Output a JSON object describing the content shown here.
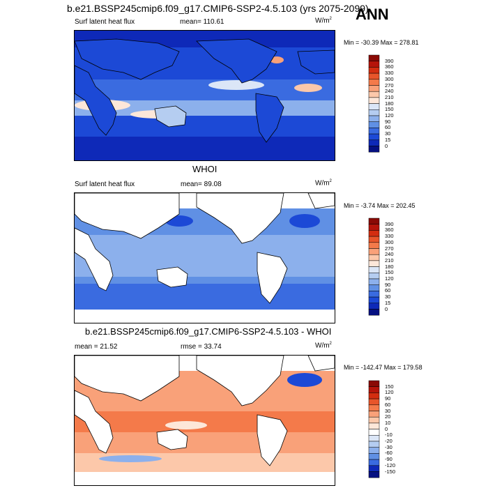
{
  "page_title": "b.e21.BSSP245cmip6.f09_g17.CMIP6-SSP2-4.5.103 (yrs 2075-2099)",
  "season": "ANN",
  "chart_data": [
    {
      "type": "heatmap",
      "title": "b.e21.BSSP245cmip6.f09_g17.CMIP6-SSP2-4.5.103 (yrs 2075-2099)",
      "variable": "Surf latent heat flux",
      "stat_label": "mean=",
      "stat_value": "110.61",
      "units": "W/m",
      "units_sup": "2",
      "min_max": "Min = -30.39 Max = 278.81",
      "colorbar_levels": [
        "390",
        "360",
        "330",
        "300",
        "270",
        "240",
        "210",
        "180",
        "150",
        "120",
        "90",
        "60",
        "30",
        "15",
        "0"
      ],
      "colorbar_colors": [
        "#8a0a05",
        "#b5140a",
        "#d32d10",
        "#e8552a",
        "#f47a4a",
        "#f9a179",
        "#fcc8aa",
        "#fde7d9",
        "#dbe6f7",
        "#b5cdf1",
        "#8cb0ec",
        "#6090e4",
        "#3a6be0",
        "#1c49d6",
        "#0e29b8",
        "#051081"
      ],
      "land_fill": false,
      "ocean_color": "#2b56dd"
    },
    {
      "type": "heatmap",
      "title": "WHOI",
      "variable": "Surf latent heat flux",
      "stat_label": "mean=",
      "stat_value": "89.08",
      "units": "W/m",
      "units_sup": "2",
      "min_max": "Min =  -3.74 Max = 202.45",
      "colorbar_levels": [
        "390",
        "360",
        "330",
        "300",
        "270",
        "240",
        "210",
        "180",
        "150",
        "120",
        "90",
        "60",
        "30",
        "15",
        "0"
      ],
      "colorbar_colors": [
        "#8a0a05",
        "#b5140a",
        "#d32d10",
        "#e8552a",
        "#f47a4a",
        "#f9a179",
        "#fcc8aa",
        "#fde7d9",
        "#dbe6f7",
        "#b5cdf1",
        "#8cb0ec",
        "#6090e4",
        "#3a6be0",
        "#1c49d6",
        "#0e29b8",
        "#051081"
      ],
      "land_fill": true,
      "ocean_color": "#7da4ea"
    },
    {
      "type": "heatmap",
      "title": "b.e21.BSSP245cmip6.f09_g17.CMIP6-SSP2-4.5.103 - WHOI",
      "variable": "",
      "stat_label": "mean =",
      "stat_value": "21.52",
      "rmse_label": "rmse =",
      "rmse_value": "33.74",
      "units": "W/m",
      "units_sup": "2",
      "min_max": "Min = -142.47 Max = 179.58",
      "colorbar_levels": [
        "150",
        "120",
        "90",
        "60",
        "30",
        "20",
        "10",
        "0",
        "-10",
        "-20",
        "-30",
        "-60",
        "-90",
        "-120",
        "-150"
      ],
      "colorbar_colors": [
        "#8a0a05",
        "#b5140a",
        "#d32d10",
        "#e8552a",
        "#f47a4a",
        "#f9a179",
        "#fcc8aa",
        "#fde7d9",
        "#ffffff",
        "#dbe6f7",
        "#b5cdf1",
        "#8cb0ec",
        "#6090e4",
        "#3a6be0",
        "#0e29b8",
        "#051081"
      ],
      "land_fill": true,
      "ocean_color": "#f5936a"
    }
  ]
}
